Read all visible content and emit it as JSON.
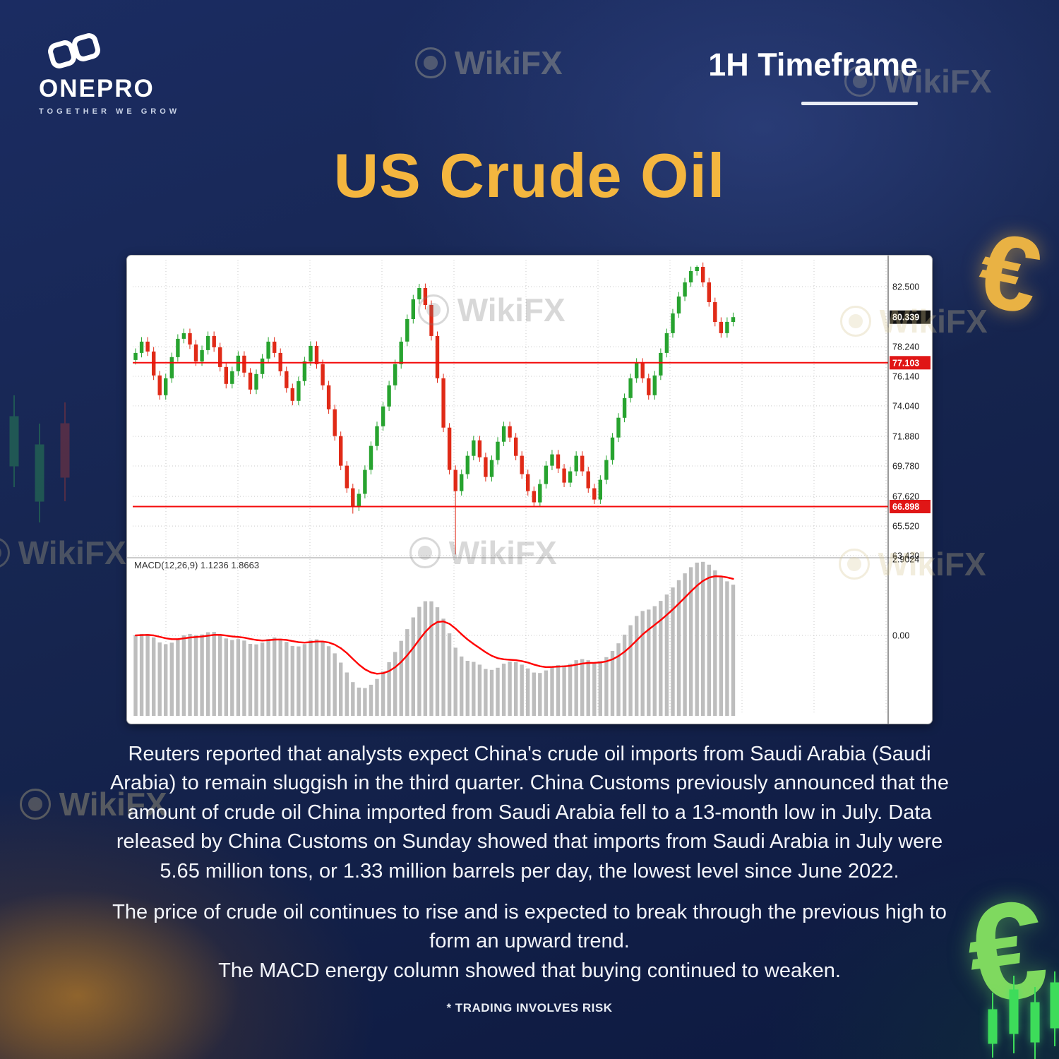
{
  "brand": {
    "name": "ONEPRO",
    "tagline": "TOGETHER WE GROW"
  },
  "header": {
    "timeframe": "1H Timeframe"
  },
  "title": "US Crude Oil",
  "watermark": {
    "label": "WikiFX"
  },
  "icons": {
    "euro": "€"
  },
  "chart": {
    "macd_label": "MACD(12,26,9) 1.1236 1.8663",
    "price_axis": {
      "ticks": [
        82.5,
        78.24,
        76.14,
        74.04,
        71.88,
        69.78,
        67.62,
        65.52,
        63.42
      ],
      "tick_labels": [
        "82.500",
        "78.240",
        "76.140",
        "74.040",
        "71.880",
        "69.780",
        "67.620",
        "65.520",
        "63.420"
      ],
      "current_price_badge": "80.339",
      "resistance_badge": "77.103",
      "support_badge": "66.898"
    },
    "macd_axis": {
      "labels": [
        "2.9024",
        "0.00"
      ],
      "values": [
        2.9024,
        0
      ]
    },
    "colors": {
      "up": "#27a32f",
      "down": "#e02a17",
      "hline": "#f40b0b",
      "signal": "#ff0000",
      "hist": "#bdbdbd",
      "badge_current": "#111111",
      "badge_level": "#e01616",
      "grid": "#c9c9c9",
      "axis": "#333333",
      "tick_text": "#1a1a1a"
    }
  },
  "chart_data": {
    "type": "candlestick",
    "symbol": "US Crude Oil",
    "timeframe": "1H",
    "last_price": 80.339,
    "hlines": [
      77.103,
      66.898
    ],
    "ylim": [
      63.0,
      84.6
    ],
    "closes": [
      77.8,
      78.6,
      77.9,
      76.2,
      74.8,
      76.0,
      77.5,
      78.8,
      79.2,
      78.4,
      77.2,
      78.0,
      79.0,
      78.2,
      76.8,
      75.6,
      76.5,
      77.6,
      76.4,
      75.2,
      76.3,
      77.4,
      78.6,
      77.8,
      76.5,
      75.3,
      74.4,
      75.8,
      77.2,
      78.3,
      77.0,
      75.5,
      73.8,
      71.9,
      69.8,
      68.2,
      66.9,
      67.8,
      69.5,
      71.2,
      72.6,
      74.0,
      75.5,
      77.0,
      78.6,
      80.2,
      81.6,
      82.4,
      81.2,
      79.0,
      76.0,
      72.5,
      69.5,
      68.0,
      69.2,
      70.5,
      71.6,
      70.4,
      69.0,
      70.2,
      71.5,
      72.6,
      71.8,
      70.5,
      69.2,
      68.0,
      67.2,
      68.5,
      69.8,
      70.6,
      69.6,
      68.6,
      69.4,
      70.5,
      69.4,
      68.2,
      67.4,
      68.8,
      70.2,
      71.8,
      73.2,
      74.6,
      76.0,
      77.1,
      76.0,
      74.8,
      76.2,
      77.8,
      79.2,
      80.6,
      81.8,
      82.8,
      83.6,
      83.9,
      82.8,
      81.4,
      80.0,
      79.2,
      80.0,
      80.339
    ],
    "wick_overrides": {
      "36": {
        "low": 66.4
      },
      "47": {
        "high": 82.7
      },
      "53": {
        "low": 63.5
      },
      "66": {
        "low": 66.85
      },
      "93": {
        "high": 84.0
      }
    },
    "macd": {
      "fast": 12,
      "slow": 26,
      "signal": 9,
      "display_values": [
        1.1236,
        1.8663
      ],
      "scale_max": 2.9024
    }
  },
  "body": {
    "paragraph1": "Reuters reported that analysts expect China's crude oil imports from Saudi Arabia (Saudi Arabia) to remain sluggish in the third quarter. China Customs previously announced that the amount of crude oil China imported from Saudi Arabia fell to a 13-month low in July. Data released by China Customs on Sunday showed that imports from Saudi Arabia in July were 5.65 million tons, or 1.33 million barrels per day, the lowest level since June 2022.",
    "paragraph2": "The price of crude oil continues to rise and is expected to break through the previous high to form an upward trend.",
    "paragraph3": "The MACD energy column showed that buying continued to weaken.",
    "disclaimer": "* TRADING INVOLVES RISK"
  }
}
